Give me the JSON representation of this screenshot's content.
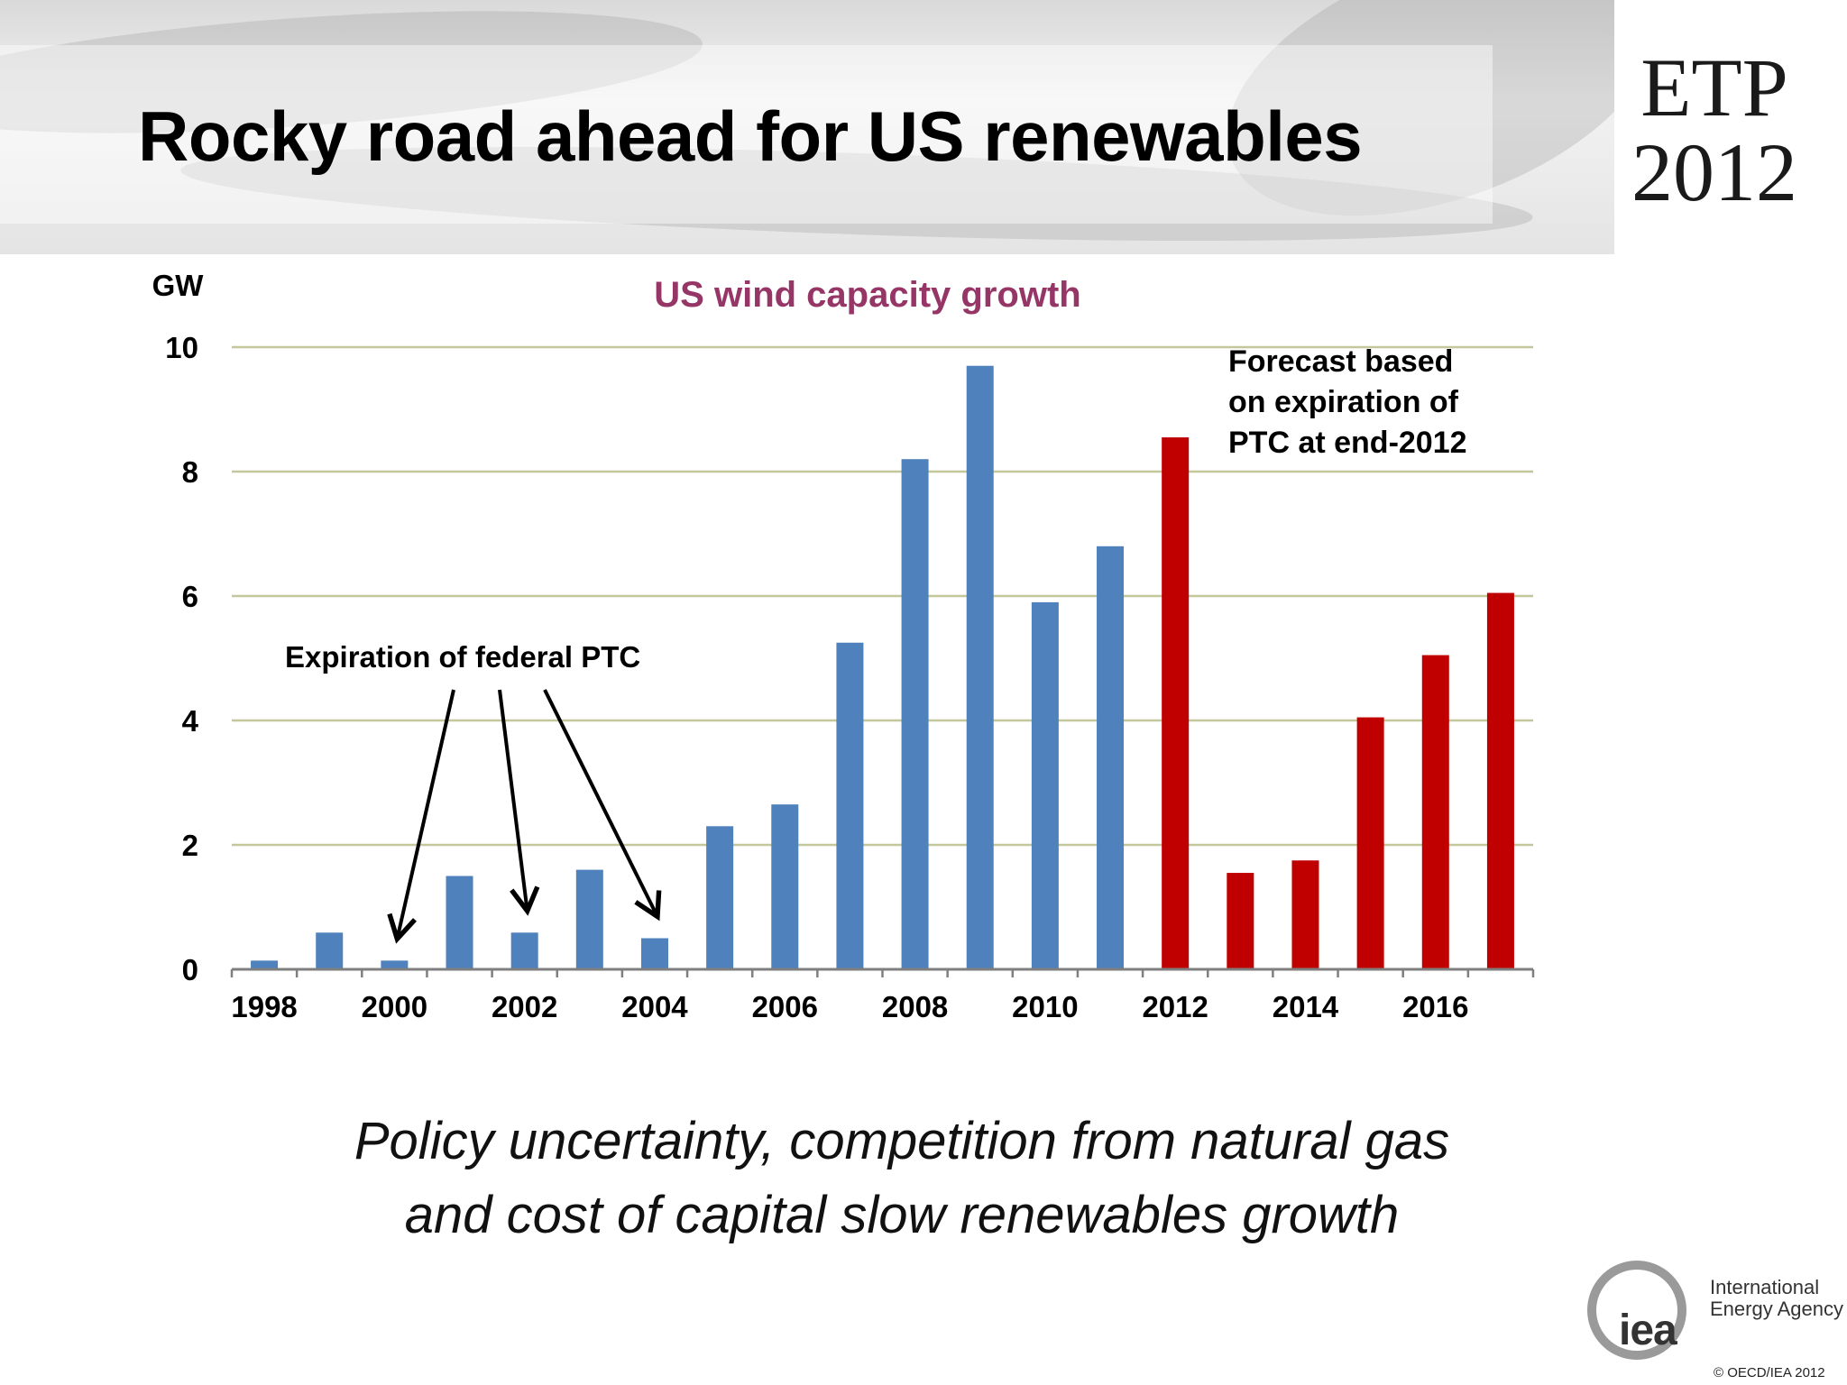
{
  "slide": {
    "title": "Rocky road ahead for US renewables",
    "logo_line1": "ETP",
    "logo_line2": "2012",
    "subtitle_line1": "Policy uncertainty, competition from natural gas",
    "subtitle_line2": "and cost of capital slow renewables growth",
    "org_name_line1": "International",
    "org_name_line2": "Energy Agency",
    "org_mark": "iea",
    "copyright": "© OECD/IEA 2012"
  },
  "chart_data": {
    "type": "bar",
    "title": "US wind capacity growth",
    "ylabel": "GW",
    "xlabel": "",
    "ylim": [
      0,
      10
    ],
    "yticks": [
      0,
      2,
      4,
      6,
      8,
      10
    ],
    "grid": true,
    "x_tick_labels": [
      "1998",
      "2000",
      "2002",
      "2004",
      "2006",
      "2008",
      "2010",
      "2012",
      "2014",
      "2016"
    ],
    "categories": [
      "1998",
      "1999",
      "2000",
      "2001",
      "2002",
      "2003",
      "2004",
      "2005",
      "2006",
      "2007",
      "2008",
      "2009",
      "2010",
      "2011",
      "2012",
      "2013",
      "2014",
      "2015",
      "2016",
      "2017"
    ],
    "series": [
      {
        "values": [
          0.14,
          0.59,
          0.14,
          1.5,
          0.59,
          1.6,
          0.5,
          2.3,
          2.65,
          5.25,
          8.2,
          9.7,
          5.9,
          6.8,
          null,
          null,
          null,
          null,
          null,
          null
        ],
        "color": "#4f81bd"
      },
      {
        "values": [
          null,
          null,
          null,
          null,
          null,
          null,
          null,
          null,
          null,
          null,
          null,
          null,
          null,
          null,
          8.55,
          1.55,
          1.75,
          4.05,
          5.05,
          6.05
        ],
        "color": "#c00000"
      }
    ],
    "annotations": [
      {
        "text": "Expiration of federal PTC",
        "points_to": [
          "2000",
          "2002",
          "2004"
        ]
      },
      {
        "text_lines": [
          "Forecast based",
          "on expiration of",
          "PTC at end-2012"
        ]
      }
    ],
    "colors": {
      "title": "#953667",
      "gridline": "#c4c79a",
      "axis": "#7f7f7f"
    }
  }
}
